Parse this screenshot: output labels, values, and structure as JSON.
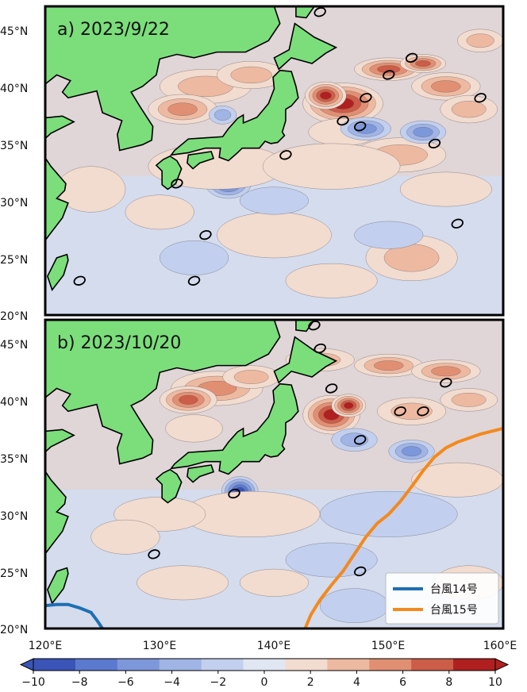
{
  "panels": [
    {
      "id": "a",
      "title": "a) 2023/9/22"
    },
    {
      "id": "b",
      "title": "b) 2023/10/20"
    }
  ],
  "axes": {
    "lon_ticks": [
      "120°E",
      "130°E",
      "140°E",
      "150°E",
      "160°E"
    ],
    "lat_ticks": [
      "45°N",
      "40°N",
      "35°N",
      "30°N",
      "25°N",
      "20°N"
    ],
    "lon_range": [
      120,
      160
    ],
    "lat_range": [
      20,
      47
    ]
  },
  "legend": {
    "items": [
      {
        "name": "台風14号",
        "color": "#1f6fb2"
      },
      {
        "name": "台風15号",
        "color": "#f28a1e"
      }
    ]
  },
  "colorbar": {
    "labels": [
      "−10",
      "−8",
      "−6",
      "−4",
      "−2",
      "0",
      "2",
      "4",
      "6",
      "8",
      "10"
    ],
    "range": [
      -10,
      10
    ],
    "colors": [
      "#3a54b8",
      "#5b79cf",
      "#7d97db",
      "#a0b4e6",
      "#c2cfee",
      "#e0e6f2",
      "#f2dbcf",
      "#eeb9a1",
      "#e18f73",
      "#cc5d48",
      "#b02020"
    ]
  },
  "colors": {
    "land": "#7bde7b",
    "ocean_neutral": "#e7d3cf",
    "frame": "#000000"
  },
  "tracks": {
    "typhoon14": [
      [
        120,
        22
      ],
      [
        121,
        22.1
      ],
      [
        122,
        22.1
      ],
      [
        123,
        21.8
      ],
      [
        124,
        21.4
      ],
      [
        124.6,
        20.6
      ],
      [
        125,
        20
      ]
    ],
    "typhoon15": [
      [
        142.7,
        20
      ],
      [
        143.2,
        21.2
      ],
      [
        144,
        22.5
      ],
      [
        145,
        23.8
      ],
      [
        146,
        25
      ],
      [
        147,
        26.5
      ],
      [
        148,
        28
      ],
      [
        149,
        29.2
      ],
      [
        150,
        30
      ],
      [
        151,
        31.1
      ],
      [
        152,
        32.4
      ],
      [
        153,
        33.8
      ],
      [
        154,
        35
      ],
      [
        155,
        35.8
      ],
      [
        156,
        36.3
      ],
      [
        158,
        37
      ],
      [
        160,
        37.5
      ]
    ]
  }
}
